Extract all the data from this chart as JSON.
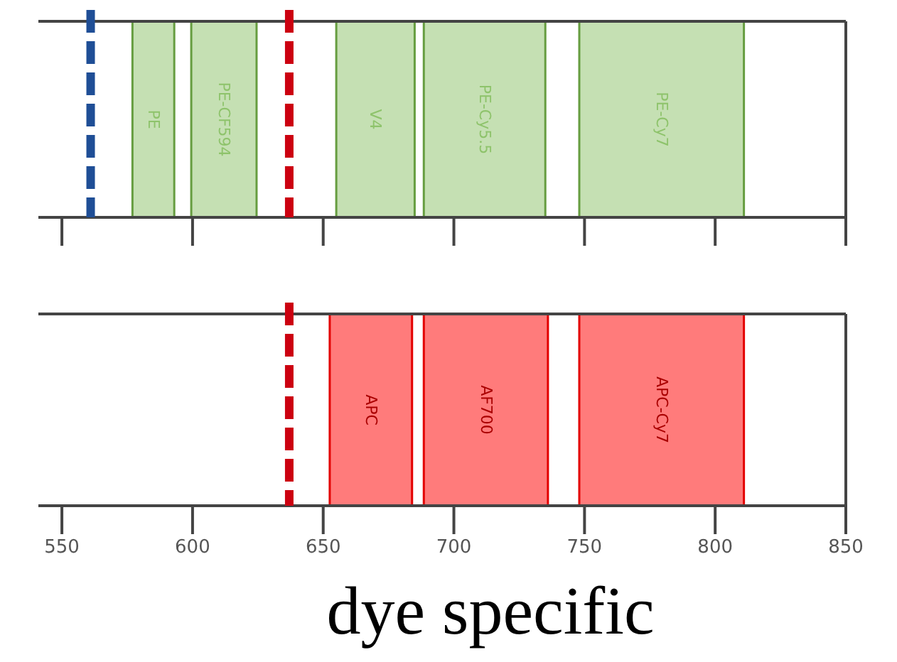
{
  "chart_data": [
    {
      "type": "bar",
      "orientation": "horizontal",
      "categories": [
        null
      ],
      "xlim": [
        541,
        850
      ],
      "xticks": [
        550,
        600,
        650,
        700,
        750,
        800,
        850
      ],
      "tick_labels": false,
      "series": [
        {
          "name": "PE",
          "color": "#c5e0b3",
          "base": [
            577
          ],
          "values": [
            16
          ]
        },
        {
          "name": "PE-CF594",
          "color": "#c5e0b3",
          "base": [
            599.5
          ],
          "values": [
            25
          ]
        },
        {
          "name": "V4",
          "color": "#c5e0b3",
          "base": [
            655
          ],
          "values": [
            30
          ]
        },
        {
          "name": "PE-Cy5.5",
          "color": "#c5e0b3",
          "base": [
            688.5
          ],
          "values": [
            46.5
          ]
        },
        {
          "name": "PE-Cy7",
          "color": "#c5e0b3",
          "base": [
            748
          ],
          "values": [
            63
          ]
        }
      ],
      "ref_lines": [
        {
          "axis": "x",
          "value": 561,
          "color": "#1f4e96",
          "line_style": "dashed"
        },
        {
          "axis": "x",
          "value": 637,
          "color": "#cc0010",
          "line_style": "dashed"
        }
      ]
    },
    {
      "type": "bar",
      "orientation": "horizontal",
      "categories": [
        null
      ],
      "xlim": [
        541,
        850
      ],
      "xticks": [
        550,
        600,
        650,
        700,
        750,
        800,
        850
      ],
      "series": [
        {
          "name": "APC",
          "color": "#ff7b7b",
          "base": [
            652.5
          ],
          "values": [
            31.5
          ]
        },
        {
          "name": "AF700",
          "color": "#ff7b7b",
          "base": [
            688.5
          ],
          "values": [
            47.5
          ]
        },
        {
          "name": "APC-Cy7",
          "color": "#ff7b7b",
          "base": [
            748
          ],
          "values": [
            63
          ]
        }
      ],
      "ref_lines": [
        {
          "axis": "x",
          "value": 637,
          "color": "#cc0010",
          "line_style": "dashed"
        }
      ],
      "annotations": [
        "dye specific"
      ]
    }
  ]
}
